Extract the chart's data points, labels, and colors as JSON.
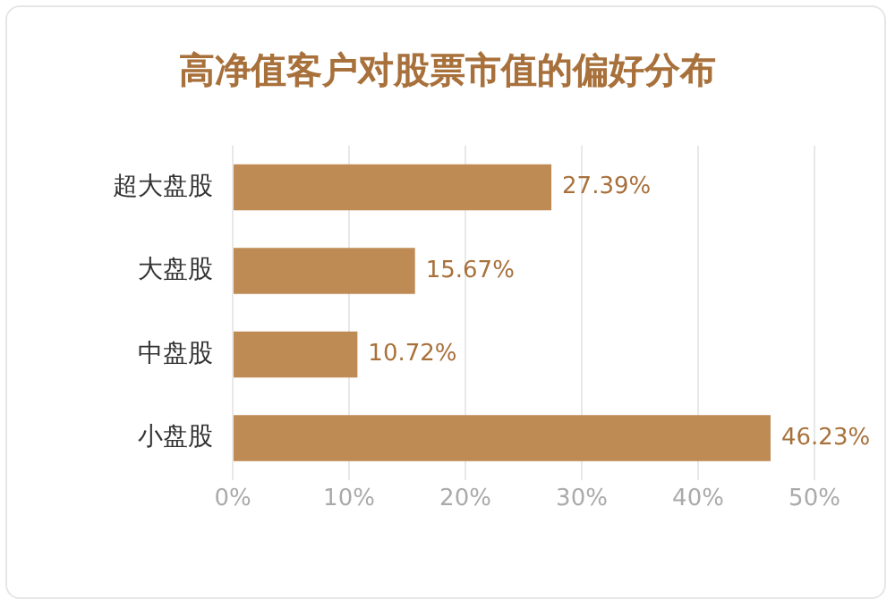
{
  "chart_data": {
    "type": "bar",
    "orientation": "horizontal",
    "title": "高净值客户对股票市值的偏好分布",
    "categories": [
      "超大盘股",
      "大盘股",
      "中盘股",
      "小盘股"
    ],
    "values": [
      27.39,
      15.67,
      10.72,
      46.23
    ],
    "color": "#bf8b55",
    "value_labels": [
      "27.39%",
      "15.67%",
      "10.72%",
      "46.23%"
    ],
    "xlim": [
      0,
      50
    ],
    "xticks": [
      {
        "value": 0,
        "label": "0%"
      },
      {
        "value": 10,
        "label": "10%"
      },
      {
        "value": 20,
        "label": "20%"
      },
      {
        "value": 30,
        "label": "30%"
      },
      {
        "value": 40,
        "label": "40%"
      },
      {
        "value": 50,
        "label": "50%"
      }
    ],
    "grid": "x"
  }
}
